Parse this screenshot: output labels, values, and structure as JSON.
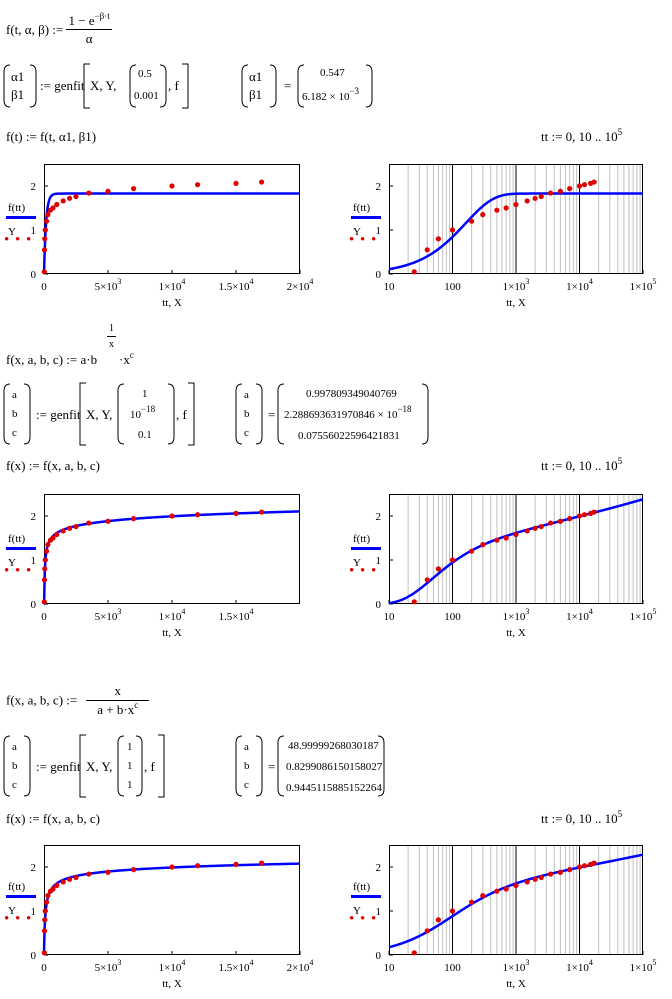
{
  "section1": {
    "def_lhs": "f(t, α, β) :=",
    "def_num": "1 − e",
    "def_num_exp": "−β·t",
    "def_den": "α",
    "fit_vars": [
      "α1",
      "β1"
    ],
    "fit_call_prefix": ":= genfit",
    "fit_call_args": "X, Y,",
    "guess": [
      "0.5",
      "0.001"
    ],
    "fit_call_suffix": ", f",
    "result_vars": [
      "α1",
      "β1"
    ],
    "result_eq": "=",
    "results": [
      "0.547",
      "6.182 × 10",
      ""
    ],
    "result2_exp": "−3",
    "func_def": "f(t) := f(t, α1, β1)",
    "range_def": "tt := 0, 10 .. 10",
    "range_exp": "5"
  },
  "section2": {
    "def_lhs": "f(x, a, b, c) := a·b",
    "def_exp_num": "1",
    "def_exp_den": "x",
    "def_tail": "·x",
    "def_tail_exp": "c",
    "fit_vars": [
      "a",
      "b",
      "c"
    ],
    "fit_call_prefix": ":= genfit",
    "fit_call_args": "X, Y,",
    "guess": [
      "1",
      "10",
      "0.1"
    ],
    "guess2_exp": "−18",
    "fit_call_suffix": ", f",
    "result_vars": [
      "a",
      "b",
      "c"
    ],
    "result_eq": "=",
    "results": [
      "0.997809349040769",
      "2.288693631970846 × 10",
      "0.07556022596421831"
    ],
    "result2_exp": "−18",
    "func_def": "f(x) := f(x, a, b, c)",
    "range_def": "tt := 0, 10 .. 10",
    "range_exp": "5"
  },
  "section3": {
    "def_lhs": "f(x, a, b, c) :=",
    "def_num": "x",
    "def_den": "a + b·x",
    "def_den_exp": "c",
    "fit_vars": [
      "a",
      "b",
      "c"
    ],
    "fit_call_prefix": ":= genfit",
    "fit_call_args": "X, Y,",
    "guess": [
      "1",
      "1",
      "1"
    ],
    "fit_call_suffix": ", f",
    "result_vars": [
      "a",
      "b",
      "c"
    ],
    "result_eq": "=",
    "results": [
      "48.99999268030187",
      "0.8299086150158027",
      "0.9445115885152264"
    ],
    "func_def": "f(x) := f(x, a, b, c)",
    "range_def": "tt := 0, 10 .. 10",
    "range_exp": "5"
  },
  "legend": {
    "line_label": "f(tt)",
    "points_label": "Y"
  },
  "colors": {
    "fit_line": "#0000ff",
    "data_points": "#e00000",
    "grid": "#c0c0c0",
    "grid_decade": "#000000"
  },
  "chart_data": [
    {
      "type": "scatter",
      "name": "section1-linear",
      "xlabel": "tt, X",
      "ylabel": "",
      "xlim": [
        0,
        20000
      ],
      "ylim": [
        0,
        2.5
      ],
      "x_ticks": [
        "0",
        "5×10",
        "1×10",
        "1.5×10",
        "2×10"
      ],
      "x_tick_exps": [
        "",
        "3",
        "4",
        "4",
        "4"
      ],
      "y_ticks": [
        "0",
        "1",
        "2"
      ],
      "model": "exp",
      "params": [
        0.547,
        0.006182
      ],
      "series": [
        {
          "name": "f(tt)",
          "kind": "line"
        },
        {
          "name": "Y",
          "kind": "points",
          "x": [
            25,
            40,
            60,
            100,
            200,
            300,
            500,
            700,
            1000,
            1500,
            2000,
            2500,
            3500,
            5000,
            7000,
            10000,
            12000,
            15000,
            17000
          ],
          "y": [
            0.05,
            0.55,
            0.8,
            1.0,
            1.2,
            1.35,
            1.45,
            1.5,
            1.58,
            1.66,
            1.72,
            1.76,
            1.84,
            1.88,
            1.94,
            2.0,
            2.03,
            2.06,
            2.09
          ]
        }
      ]
    },
    {
      "type": "scatter",
      "name": "section1-log",
      "xlabel": "tt, X",
      "ylabel": "",
      "xscale": "log",
      "xlim": [
        10,
        100000
      ],
      "ylim": [
        0,
        2.5
      ],
      "x_ticks": [
        "10",
        "100",
        "1×10",
        "1×10",
        "1×10"
      ],
      "x_tick_exps": [
        "",
        "",
        "3",
        "4",
        "5"
      ],
      "y_ticks": [
        "0",
        "1",
        "2"
      ],
      "model": "exp",
      "params": [
        0.547,
        0.006182
      ],
      "series": [
        {
          "name": "f(tt)",
          "kind": "line"
        },
        {
          "name": "Y",
          "kind": "points",
          "x": [
            25,
            40,
            60,
            100,
            200,
            300,
            500,
            700,
            1000,
            1500,
            2000,
            2500,
            3500,
            5000,
            7000,
            10000,
            12000,
            15000,
            17000
          ],
          "y": [
            0.05,
            0.55,
            0.8,
            1.0,
            1.2,
            1.35,
            1.45,
            1.5,
            1.58,
            1.66,
            1.72,
            1.76,
            1.84,
            1.88,
            1.94,
            2.0,
            2.03,
            2.06,
            2.09
          ]
        }
      ]
    },
    {
      "type": "scatter",
      "name": "section2-linear",
      "xlabel": "tt, X",
      "ylabel": "",
      "xlim": [
        0,
        20000
      ],
      "ylim": [
        0,
        2.5
      ],
      "x_ticks": [
        "0",
        "5×10",
        "1×10",
        "1.5×10"
      ],
      "x_tick_exps": [
        "",
        "3",
        "4",
        "4"
      ],
      "y_ticks": [
        "0",
        "1",
        "2"
      ],
      "model": "pow",
      "params": [
        0.997809349040769,
        2.288693631970846e-18,
        0.07556022596421831
      ],
      "series": [
        {
          "name": "f(tt)",
          "kind": "line"
        },
        {
          "name": "Y",
          "kind": "points",
          "x": [
            25,
            40,
            60,
            100,
            200,
            300,
            500,
            700,
            1000,
            1500,
            2000,
            2500,
            3500,
            5000,
            7000,
            10000,
            12000,
            15000,
            17000
          ],
          "y": [
            0.05,
            0.55,
            0.8,
            1.0,
            1.2,
            1.35,
            1.45,
            1.5,
            1.58,
            1.66,
            1.72,
            1.76,
            1.84,
            1.88,
            1.94,
            2.0,
            2.03,
            2.06,
            2.09
          ]
        }
      ]
    },
    {
      "type": "scatter",
      "name": "section2-log",
      "xlabel": "tt, X",
      "ylabel": "",
      "xscale": "log",
      "xlim": [
        10,
        100000
      ],
      "ylim": [
        0,
        2.5
      ],
      "x_ticks": [
        "10",
        "100",
        "1×10",
        "1×10",
        "1×10"
      ],
      "x_tick_exps": [
        "",
        "",
        "3",
        "4",
        "5"
      ],
      "y_ticks": [
        "0",
        "1",
        "2"
      ],
      "model": "pow",
      "params": [
        0.997809349040769,
        2.288693631970846e-18,
        0.07556022596421831
      ],
      "series": [
        {
          "name": "f(tt)",
          "kind": "line"
        },
        {
          "name": "Y",
          "kind": "points",
          "x": [
            25,
            40,
            60,
            100,
            200,
            300,
            500,
            700,
            1000,
            1500,
            2000,
            2500,
            3500,
            5000,
            7000,
            10000,
            12000,
            15000,
            17000
          ],
          "y": [
            0.05,
            0.55,
            0.8,
            1.0,
            1.2,
            1.35,
            1.45,
            1.5,
            1.58,
            1.66,
            1.72,
            1.76,
            1.84,
            1.88,
            1.94,
            2.0,
            2.03,
            2.06,
            2.09
          ]
        }
      ]
    },
    {
      "type": "scatter",
      "name": "section3-linear",
      "xlabel": "tt, X",
      "ylabel": "",
      "xlim": [
        0,
        20000
      ],
      "ylim": [
        0,
        2.5
      ],
      "x_ticks": [
        "0",
        "5×10",
        "1×10",
        "1.5×10",
        "2×10"
      ],
      "x_tick_exps": [
        "",
        "3",
        "4",
        "4",
        "4"
      ],
      "y_ticks": [
        "0",
        "1",
        "2"
      ],
      "model": "rat",
      "params": [
        48.99999268030187,
        0.8299086150158027,
        0.9445115885152264
      ],
      "series": [
        {
          "name": "f(tt)",
          "kind": "line"
        },
        {
          "name": "Y",
          "kind": "points",
          "x": [
            25,
            40,
            60,
            100,
            200,
            300,
            500,
            700,
            1000,
            1500,
            2000,
            2500,
            3500,
            5000,
            7000,
            10000,
            12000,
            15000,
            17000
          ],
          "y": [
            0.05,
            0.55,
            0.8,
            1.0,
            1.2,
            1.35,
            1.45,
            1.5,
            1.58,
            1.66,
            1.72,
            1.76,
            1.84,
            1.88,
            1.94,
            2.0,
            2.03,
            2.06,
            2.09
          ]
        }
      ]
    },
    {
      "type": "scatter",
      "name": "section3-log",
      "xlabel": "tt, X",
      "ylabel": "",
      "xscale": "log",
      "xlim": [
        10,
        100000
      ],
      "ylim": [
        0,
        2.5
      ],
      "x_ticks": [
        "10",
        "100",
        "1×10",
        "1×10",
        "1×10"
      ],
      "x_tick_exps": [
        "",
        "",
        "3",
        "4",
        "5"
      ],
      "y_ticks": [
        "0",
        "1",
        "2"
      ],
      "model": "rat",
      "params": [
        48.99999268030187,
        0.8299086150158027,
        0.9445115885152264
      ],
      "series": [
        {
          "name": "f(tt)",
          "kind": "line"
        },
        {
          "name": "Y",
          "kind": "points",
          "x": [
            25,
            40,
            60,
            100,
            200,
            300,
            500,
            700,
            1000,
            1500,
            2000,
            2500,
            3500,
            5000,
            7000,
            10000,
            12000,
            15000,
            17000
          ],
          "y": [
            0.05,
            0.55,
            0.8,
            1.0,
            1.2,
            1.35,
            1.45,
            1.5,
            1.58,
            1.66,
            1.72,
            1.76,
            1.84,
            1.88,
            1.94,
            2.0,
            2.03,
            2.06,
            2.09
          ]
        }
      ]
    }
  ]
}
